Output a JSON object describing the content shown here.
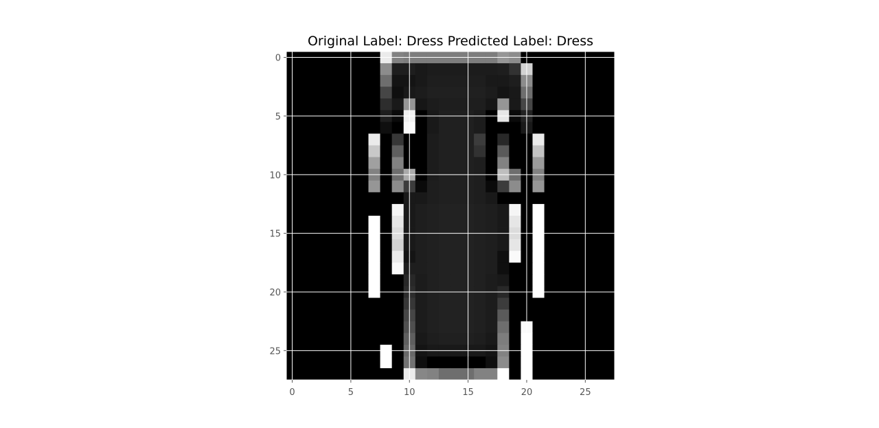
{
  "chart_data": {
    "type": "heatmap",
    "title": "Original Label: Dress  Predicted Label: Dress",
    "xlabel": "",
    "ylabel": "",
    "colormap": "gray",
    "grid": true,
    "grid_color": "#ffffff",
    "xlim": [
      -0.5,
      27.5
    ],
    "ylim": [
      27.5,
      -0.5
    ],
    "xticks": [
      0,
      5,
      10,
      15,
      20,
      25
    ],
    "yticks": [
      0,
      5,
      10,
      15,
      20,
      25
    ],
    "xtick_labels": [
      "0",
      "5",
      "10",
      "15",
      "20",
      "25"
    ],
    "ytick_labels": [
      "0",
      "5",
      "10",
      "15",
      "20",
      "25"
    ],
    "value_range": [
      0,
      255
    ],
    "pixels": [
      [
        0,
        0,
        0,
        0,
        0,
        0,
        0,
        0,
        235,
        130,
        125,
        125,
        125,
        125,
        125,
        125,
        125,
        125,
        150,
        140,
        0,
        0,
        0,
        0,
        0,
        0,
        0,
        0
      ],
      [
        0,
        0,
        0,
        0,
        0,
        0,
        0,
        0,
        140,
        30,
        30,
        25,
        28,
        28,
        28,
        28,
        28,
        28,
        30,
        50,
        210,
        0,
        0,
        0,
        0,
        0,
        0,
        0
      ],
      [
        0,
        0,
        0,
        0,
        0,
        0,
        0,
        0,
        110,
        20,
        20,
        25,
        30,
        30,
        30,
        30,
        30,
        25,
        25,
        30,
        140,
        0,
        0,
        0,
        0,
        0,
        0,
        0
      ],
      [
        0,
        0,
        0,
        0,
        0,
        0,
        0,
        0,
        70,
        15,
        25,
        28,
        32,
        32,
        32,
        32,
        32,
        28,
        20,
        25,
        110,
        0,
        0,
        0,
        0,
        0,
        0,
        0
      ],
      [
        0,
        0,
        0,
        0,
        0,
        0,
        0,
        0,
        45,
        25,
        150,
        22,
        28,
        30,
        30,
        30,
        30,
        22,
        150,
        25,
        70,
        0,
        0,
        0,
        0,
        0,
        0,
        0
      ],
      [
        0,
        0,
        0,
        0,
        0,
        0,
        0,
        0,
        30,
        10,
        240,
        0,
        25,
        32,
        32,
        32,
        28,
        0,
        230,
        10,
        35,
        0,
        0,
        0,
        0,
        0,
        0,
        0
      ],
      [
        0,
        0,
        0,
        0,
        0,
        0,
        0,
        0,
        15,
        0,
        250,
        0,
        25,
        32,
        32,
        32,
        28,
        0,
        0,
        0,
        25,
        0,
        0,
        0,
        0,
        0,
        0,
        0
      ],
      [
        0,
        0,
        0,
        0,
        0,
        0,
        0,
        235,
        0,
        55,
        0,
        0,
        28,
        32,
        32,
        32,
        60,
        0,
        40,
        0,
        0,
        235,
        0,
        0,
        0,
        0,
        0,
        0
      ],
      [
        0,
        0,
        0,
        0,
        0,
        0,
        0,
        200,
        0,
        95,
        0,
        0,
        28,
        32,
        32,
        32,
        50,
        0,
        90,
        0,
        0,
        195,
        0,
        0,
        0,
        0,
        0,
        0
      ],
      [
        0,
        0,
        0,
        0,
        0,
        0,
        0,
        160,
        0,
        130,
        0,
        0,
        28,
        32,
        32,
        32,
        30,
        0,
        130,
        0,
        0,
        155,
        0,
        0,
        0,
        0,
        0,
        0
      ],
      [
        0,
        0,
        0,
        0,
        0,
        0,
        0,
        130,
        0,
        110,
        170,
        0,
        28,
        32,
        32,
        32,
        30,
        0,
        190,
        110,
        0,
        130,
        0,
        0,
        0,
        0,
        0,
        0
      ],
      [
        0,
        0,
        0,
        0,
        0,
        0,
        0,
        150,
        0,
        140,
        60,
        10,
        30,
        32,
        32,
        32,
        30,
        10,
        60,
        140,
        0,
        150,
        0,
        0,
        0,
        0,
        0,
        0
      ],
      [
        0,
        0,
        0,
        0,
        0,
        0,
        0,
        0,
        0,
        0,
        25,
        25,
        30,
        32,
        32,
        32,
        30,
        25,
        0,
        0,
        0,
        0,
        0,
        0,
        0,
        0,
        0,
        0
      ],
      [
        0,
        0,
        0,
        0,
        0,
        0,
        0,
        0,
        0,
        245,
        25,
        30,
        32,
        34,
        34,
        34,
        32,
        30,
        25,
        245,
        0,
        255,
        0,
        0,
        0,
        0,
        0,
        0
      ],
      [
        0,
        0,
        0,
        0,
        0,
        0,
        0,
        255,
        0,
        230,
        25,
        30,
        32,
        34,
        34,
        34,
        32,
        30,
        25,
        230,
        0,
        255,
        0,
        0,
        0,
        0,
        0,
        0
      ],
      [
        0,
        0,
        0,
        0,
        0,
        0,
        0,
        255,
        0,
        220,
        25,
        30,
        32,
        34,
        34,
        34,
        32,
        30,
        25,
        220,
        0,
        255,
        0,
        0,
        0,
        0,
        0,
        0
      ],
      [
        0,
        0,
        0,
        0,
        0,
        0,
        0,
        255,
        0,
        210,
        25,
        30,
        32,
        34,
        34,
        34,
        32,
        30,
        25,
        230,
        0,
        255,
        0,
        0,
        0,
        0,
        0,
        0
      ],
      [
        0,
        0,
        0,
        0,
        0,
        0,
        0,
        255,
        0,
        235,
        20,
        30,
        32,
        34,
        34,
        34,
        32,
        30,
        15,
        250,
        0,
        255,
        0,
        0,
        0,
        0,
        0,
        0
      ],
      [
        0,
        0,
        0,
        0,
        0,
        0,
        0,
        255,
        0,
        250,
        30,
        30,
        32,
        34,
        34,
        34,
        32,
        30,
        15,
        0,
        0,
        255,
        0,
        0,
        0,
        0,
        0,
        0
      ],
      [
        0,
        0,
        0,
        0,
        0,
        0,
        0,
        255,
        0,
        0,
        40,
        28,
        32,
        34,
        34,
        34,
        32,
        28,
        25,
        0,
        0,
        255,
        0,
        0,
        0,
        0,
        0,
        0
      ],
      [
        0,
        0,
        0,
        0,
        0,
        0,
        0,
        255,
        0,
        0,
        45,
        28,
        32,
        34,
        34,
        34,
        32,
        28,
        40,
        0,
        0,
        255,
        0,
        0,
        0,
        0,
        0,
        0
      ],
      [
        0,
        0,
        0,
        0,
        0,
        0,
        0,
        0,
        0,
        0,
        55,
        28,
        32,
        34,
        34,
        34,
        32,
        28,
        60,
        0,
        0,
        0,
        0,
        0,
        0,
        0,
        0,
        0
      ],
      [
        0,
        0,
        0,
        0,
        0,
        0,
        0,
        0,
        0,
        0,
        70,
        28,
        32,
        34,
        34,
        34,
        32,
        28,
        90,
        0,
        0,
        0,
        0,
        0,
        0,
        0,
        0,
        0
      ],
      [
        0,
        0,
        0,
        0,
        0,
        0,
        0,
        0,
        0,
        0,
        80,
        28,
        32,
        34,
        34,
        34,
        32,
        28,
        110,
        0,
        250,
        0,
        0,
        0,
        0,
        0,
        0,
        0
      ],
      [
        0,
        0,
        0,
        0,
        0,
        0,
        0,
        0,
        0,
        0,
        95,
        25,
        30,
        32,
        32,
        32,
        30,
        25,
        125,
        0,
        255,
        0,
        0,
        0,
        0,
        0,
        0,
        0
      ],
      [
        0,
        0,
        0,
        0,
        0,
        0,
        0,
        0,
        255,
        0,
        105,
        20,
        25,
        25,
        25,
        25,
        25,
        20,
        130,
        0,
        255,
        0,
        0,
        0,
        0,
        0,
        0,
        0
      ],
      [
        0,
        0,
        0,
        0,
        0,
        0,
        0,
        0,
        255,
        0,
        115,
        15,
        0,
        0,
        0,
        0,
        0,
        15,
        140,
        0,
        255,
        0,
        0,
        0,
        0,
        0,
        0,
        0
      ],
      [
        0,
        0,
        0,
        0,
        0,
        0,
        0,
        0,
        0,
        0,
        235,
        135,
        130,
        110,
        110,
        110,
        130,
        130,
        255,
        0,
        255,
        0,
        0,
        0,
        0,
        0,
        0,
        0
      ]
    ]
  }
}
